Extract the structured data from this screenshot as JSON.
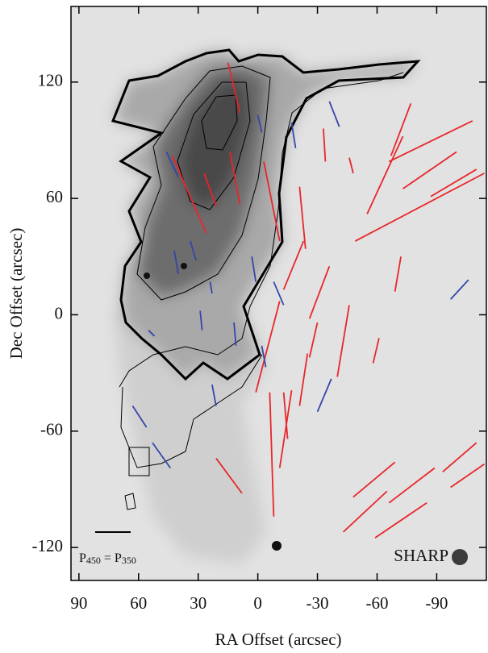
{
  "chart_data": {
    "type": "vector-map",
    "xlabel": "RA Offset (arcsec)",
    "ylabel": "Dec Offset (arcsec)",
    "xlim": [
      94,
      -115
    ],
    "ylim": [
      -137,
      159
    ],
    "xticks": [
      90,
      60,
      30,
      0,
      -30,
      -60,
      -90
    ],
    "yticks": [
      120,
      60,
      0,
      -60,
      -120
    ],
    "scale_label": {
      "parts": [
        "P",
        "450",
        " = P",
        "350"
      ]
    },
    "beam_label": "SHARP",
    "vectors": [
      {
        "color": "#e8262b",
        "x0": [
          15,
          14,
          43,
          27,
          -3,
          -21,
          -33,
          -46,
          -55,
          -67,
          -66,
          -73,
          -87,
          -49,
          -69,
          -26,
          -13,
          1,
          -26,
          -21,
          -11,
          -13,
          -40,
          -58,
          -6,
          21,
          -43,
          -48,
          -66,
          -59,
          -93,
          -97
        ],
        "y0": [
          130,
          84,
          82,
          73,
          79,
          66,
          96,
          81,
          52,
          82,
          79,
          65,
          61,
          38,
          12,
          -2,
          13,
          -40,
          -22,
          -47,
          -79,
          -40,
          -32,
          -25,
          -40,
          -74,
          -112,
          -94,
          -97,
          -115,
          -81,
          -89
        ],
        "x1": [
          9,
          9,
          26,
          21,
          -11,
          -24,
          -34,
          -48,
          -73,
          -77,
          -108,
          -100,
          -110,
          -114,
          -72,
          -36,
          -23,
          -11,
          -30,
          -25,
          -17,
          -15,
          -46,
          -61,
          -8,
          8,
          -65,
          -69,
          -89,
          -85,
          -110,
          -114
        ],
        "y1": [
          104,
          57,
          42,
          56,
          38,
          34,
          79,
          73,
          92,
          109,
          100,
          84,
          75,
          73,
          30,
          25,
          38,
          7,
          -4,
          -20,
          -39,
          -64,
          5,
          -12,
          -104,
          -92,
          -91,
          -76,
          -79,
          -97,
          -66,
          -77
        ]
      },
      {
        "color": "#3446a8",
        "x0": [
          -36,
          -17,
          0,
          46,
          42,
          24,
          3,
          29,
          12,
          -8,
          -2,
          -30,
          53,
          63,
          23,
          -97,
          55,
          34
        ],
        "y0": [
          110,
          99,
          103,
          84,
          33,
          17,
          30,
          2,
          -4,
          17,
          -16,
          -50,
          -66,
          -47,
          -36,
          8,
          -8,
          38
        ],
        "x1": [
          -41,
          -19,
          -2,
          40,
          40,
          23,
          1,
          28,
          11,
          -13,
          -4,
          -37,
          44,
          56,
          21,
          -106,
          52,
          31
        ],
        "y1": [
          97,
          86,
          94,
          71,
          21,
          11,
          17,
          -8,
          -16,
          5,
          -27,
          -33,
          -79,
          -58,
          -47,
          18,
          -11,
          28
        ]
      }
    ]
  }
}
